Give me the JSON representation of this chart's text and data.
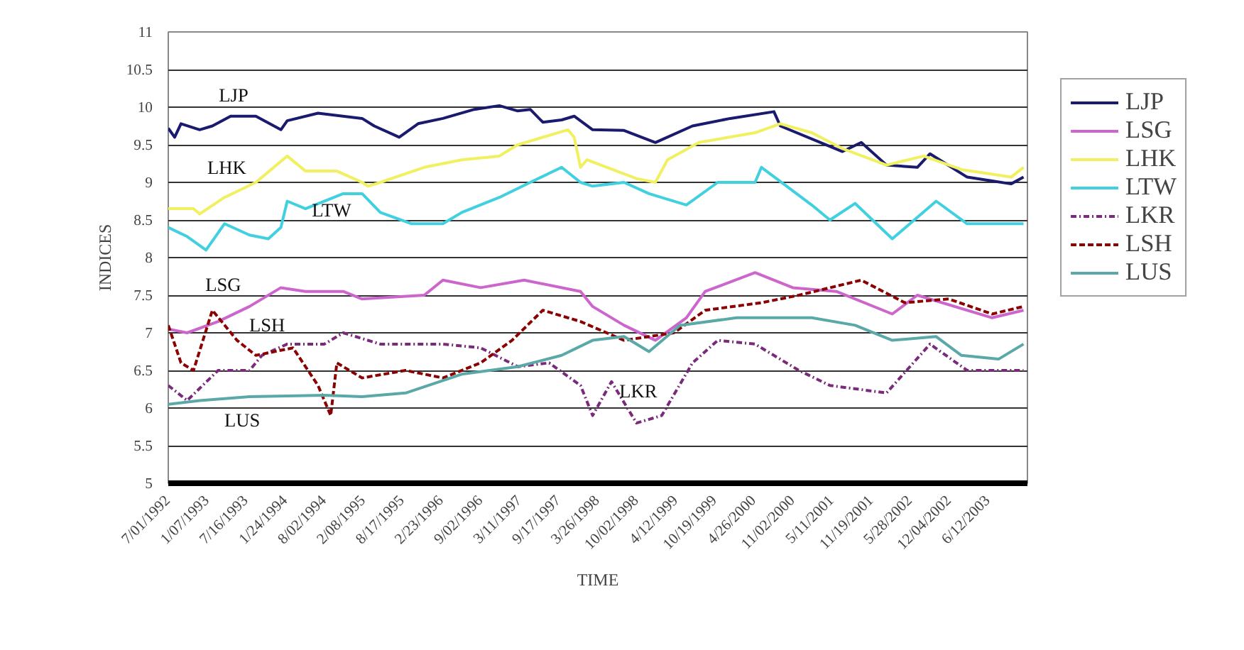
{
  "chart_data": {
    "type": "line",
    "xlabel": "TIME",
    "ylabel": "INDICES",
    "xlim": [
      "1992-07-01",
      "2003-12-20"
    ],
    "ylim": [
      5,
      11
    ],
    "xticks": [
      {
        "value": "1992-07-01",
        "label": "7/01/1992"
      },
      {
        "value": "1993-01-07",
        "label": "1/07/1993"
      },
      {
        "value": "1993-07-16",
        "label": "7/16/1993"
      },
      {
        "value": "1994-01-24",
        "label": "1/24/1994"
      },
      {
        "value": "1994-08-02",
        "label": "8/02/1994"
      },
      {
        "value": "1995-02-08",
        "label": "2/08/1995"
      },
      {
        "value": "1995-08-17",
        "label": "8/17/1995"
      },
      {
        "value": "1996-02-23",
        "label": "2/23/1996"
      },
      {
        "value": "1996-09-02",
        "label": "9/02/1996"
      },
      {
        "value": "1997-03-11",
        "label": "3/11/1997"
      },
      {
        "value": "1997-09-17",
        "label": "9/17/1997"
      },
      {
        "value": "1998-03-26",
        "label": "3/26/1998"
      },
      {
        "value": "1998-10-02",
        "label": "10/02/1998"
      },
      {
        "value": "1999-04-12",
        "label": "4/12/1999"
      },
      {
        "value": "1999-10-19",
        "label": "10/19/1999"
      },
      {
        "value": "2000-04-26",
        "label": "4/26/2000"
      },
      {
        "value": "2000-11-02",
        "label": "11/02/2000"
      },
      {
        "value": "2001-05-11",
        "label": "5/11/2001"
      },
      {
        "value": "2001-11-19",
        "label": "11/19/2001"
      },
      {
        "value": "2002-05-28",
        "label": "5/28/2002"
      },
      {
        "value": "2002-12-04",
        "label": "12/04/2002"
      },
      {
        "value": "2003-06-12",
        "label": "6/12/2003"
      }
    ],
    "yticks": [
      5,
      5.5,
      6,
      6.5,
      7,
      7.5,
      8,
      8.5,
      9,
      9.5,
      10,
      10.5,
      11
    ],
    "grid": "y",
    "legend": "right",
    "series": [
      {
        "name": "LJP",
        "color": "#1a1a6e",
        "line_style": "solid",
        "x": [
          "1992-07",
          "1992-08",
          "1992-09",
          "1992-12",
          "1993-02",
          "1993-05",
          "1993-09",
          "1994-01",
          "1994-02",
          "1994-07",
          "1995-02",
          "1995-04",
          "1995-08",
          "1995-11",
          "1996-03",
          "1996-08",
          "1996-12",
          "1997-03",
          "1997-05",
          "1997-07",
          "1997-10",
          "1997-12",
          "1998-03",
          "1998-08",
          "1999-01",
          "1999-07",
          "2000-01",
          "2000-08",
          "2000-09",
          "2001-07",
          "2001-10",
          "2002-02",
          "2002-07",
          "2002-09",
          "2003-03",
          "2003-10",
          "2003-12"
        ],
        "values": [
          9.72,
          9.6,
          9.78,
          9.7,
          9.75,
          9.88,
          9.88,
          9.7,
          9.82,
          9.92,
          9.85,
          9.75,
          9.6,
          9.78,
          9.85,
          9.97,
          10.02,
          9.95,
          9.97,
          9.8,
          9.83,
          9.88,
          9.7,
          9.69,
          9.53,
          9.75,
          9.85,
          9.94,
          9.75,
          9.41,
          9.53,
          9.23,
          9.2,
          9.38,
          9.07,
          8.98,
          9.07
        ]
      },
      {
        "name": "LSG",
        "color": "#cc66cc",
        "line_style": "solid",
        "x": [
          "1992-07",
          "1992-10",
          "1993-03",
          "1993-08",
          "1994-01",
          "1994-05",
          "1994-11",
          "1995-02",
          "1995-12",
          "1996-03",
          "1996-09",
          "1997-04",
          "1998-01",
          "1998-03",
          "1998-08",
          "1999-01",
          "1999-06",
          "1999-09",
          "2000-05",
          "2000-11",
          "2001-06",
          "2002-03",
          "2002-07",
          "2003-07",
          "2003-12"
        ],
        "values": [
          7.05,
          7.0,
          7.15,
          7.35,
          7.6,
          7.55,
          7.55,
          7.45,
          7.5,
          7.7,
          7.6,
          7.7,
          7.55,
          7.35,
          7.1,
          6.9,
          7.2,
          7.55,
          7.8,
          7.6,
          7.55,
          7.25,
          7.5,
          7.2,
          7.3
        ]
      },
      {
        "name": "LHK",
        "color": "#f0f060",
        "line_style": "solid",
        "x": [
          "1992-07",
          "1992-11",
          "1992-12",
          "1993-04",
          "1993-09",
          "1994-02",
          "1994-05",
          "1994-10",
          "1995-02",
          "1995-03",
          "1995-05",
          "1995-12",
          "1996-06",
          "1996-12",
          "1997-03",
          "1997-11",
          "1997-12",
          "1998-01",
          "1998-02",
          "1998-10",
          "1999-01",
          "1999-03",
          "1999-08",
          "2000-05",
          "2000-09",
          "2001-02",
          "2001-07",
          "2002-02",
          "2002-08",
          "2003-02",
          "2003-10",
          "2003-12"
        ],
        "values": [
          8.65,
          8.65,
          8.58,
          8.8,
          9.0,
          9.35,
          9.15,
          9.15,
          9.0,
          8.95,
          9.0,
          9.2,
          9.3,
          9.35,
          9.5,
          9.7,
          9.6,
          9.2,
          9.3,
          9.05,
          9.0,
          9.3,
          9.53,
          9.66,
          9.78,
          9.66,
          9.45,
          9.23,
          9.35,
          9.17,
          9.07,
          9.2
        ]
      },
      {
        "name": "LTW",
        "color": "#40d0e0",
        "line_style": "solid",
        "x": [
          "1992-07",
          "1992-10",
          "1993-01",
          "1993-04",
          "1993-08",
          "1993-11",
          "1994-01",
          "1994-02",
          "1994-05",
          "1994-11",
          "1995-02",
          "1995-05",
          "1995-10",
          "1996-03",
          "1996-06",
          "1996-12",
          "1997-05",
          "1997-10",
          "1998-01",
          "1998-03",
          "1998-08",
          "1998-12",
          "1999-06",
          "1999-11",
          "2000-05",
          "2000-06",
          "2001-02",
          "2001-05",
          "2001-09",
          "2002-03",
          "2002-10",
          "2003-03",
          "2003-12"
        ],
        "values": [
          8.4,
          8.28,
          8.1,
          8.45,
          8.3,
          8.25,
          8.4,
          8.75,
          8.65,
          8.85,
          8.85,
          8.6,
          8.45,
          8.45,
          8.6,
          8.8,
          9.0,
          9.2,
          9.0,
          8.95,
          9.0,
          8.85,
          8.7,
          9.0,
          9.0,
          9.2,
          8.7,
          8.5,
          8.72,
          8.25,
          8.75,
          8.45,
          8.45
        ]
      },
      {
        "name": "LKR",
        "color": "#7a2a7a",
        "line_style": "dashdot",
        "x": [
          "1992-07",
          "1992-10",
          "1993-03",
          "1993-08",
          "1993-10",
          "1994-02",
          "1994-08",
          "1994-11",
          "1995-05",
          "1996-03",
          "1996-09",
          "1997-03",
          "1997-08",
          "1998-01",
          "1998-03",
          "1998-06",
          "1998-10",
          "1999-02",
          "1999-07",
          "1999-11",
          "2000-05",
          "2000-12",
          "2001-05",
          "2002-02",
          "2002-09",
          "2003-03",
          "2003-12"
        ],
        "values": [
          6.3,
          6.1,
          6.5,
          6.5,
          6.7,
          6.85,
          6.85,
          7.0,
          6.85,
          6.85,
          6.8,
          6.55,
          6.6,
          6.3,
          5.9,
          6.35,
          5.8,
          5.9,
          6.6,
          6.9,
          6.85,
          6.5,
          6.3,
          6.2,
          6.85,
          6.5,
          6.5
        ]
      },
      {
        "name": "LSH",
        "color": "#8b0000",
        "line_style": "dashed",
        "x": [
          "1992-07",
          "1992-09",
          "1992-11",
          "1993-02",
          "1993-06",
          "1993-09",
          "1994-03",
          "1994-07",
          "1994-09",
          "1994-10",
          "1995-02",
          "1995-09",
          "1996-03",
          "1996-09",
          "1997-02",
          "1997-07",
          "1998-01",
          "1998-08",
          "1999-04",
          "1999-09",
          "2000-06",
          "2000-12",
          "2001-10",
          "2002-05",
          "2002-12",
          "2003-07",
          "2003-12"
        ],
        "values": [
          7.1,
          6.6,
          6.5,
          7.3,
          6.9,
          6.7,
          6.8,
          6.3,
          5.9,
          6.6,
          6.4,
          6.5,
          6.4,
          6.6,
          6.9,
          7.3,
          7.15,
          6.9,
          7.0,
          7.3,
          7.4,
          7.5,
          7.7,
          7.4,
          7.45,
          7.25,
          7.35
        ]
      },
      {
        "name": "LUS",
        "color": "#5aa8a8",
        "line_style": "solid",
        "x": [
          "1992-07",
          "1992-12",
          "1993-08",
          "1994-08",
          "1995-02",
          "1995-09",
          "1996-06",
          "1997-03",
          "1997-10",
          "1998-03",
          "1998-08",
          "1998-12",
          "1999-05",
          "2000-02",
          "2001-02",
          "2001-09",
          "2002-03",
          "2002-10",
          "2003-02",
          "2003-08",
          "2003-12"
        ],
        "values": [
          6.05,
          6.1,
          6.15,
          6.17,
          6.15,
          6.2,
          6.45,
          6.55,
          6.7,
          6.9,
          6.95,
          6.75,
          7.1,
          7.2,
          7.2,
          7.1,
          6.9,
          6.95,
          6.7,
          6.65,
          6.85
        ]
      }
    ],
    "annotations": [
      "LJP",
      "LHK",
      "LTW",
      "LSG",
      "LSH",
      "LUS",
      "LKR"
    ]
  }
}
